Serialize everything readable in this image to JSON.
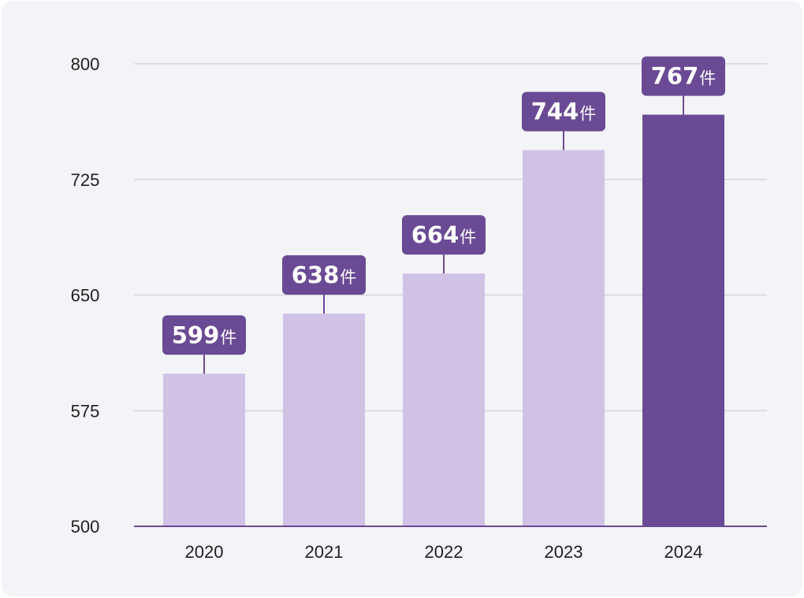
{
  "chart_data": {
    "type": "bar",
    "title": "",
    "xlabel": "",
    "ylabel": "",
    "categories": [
      "2020",
      "2021",
      "2022",
      "2023",
      "2024"
    ],
    "values": [
      599,
      638,
      664,
      744,
      767
    ],
    "value_suffix": "件",
    "ylim": [
      500,
      800
    ],
    "yticks": [
      "500",
      "575",
      "650",
      "725",
      "800"
    ],
    "grid": true,
    "legend": "none",
    "highlight_index": 4
  },
  "colors": {
    "background": "#f3f4f7",
    "bar": "#d0c2e5",
    "bar_highlight": "#6a4a94",
    "label_box": "#6a4a94",
    "axis": "#6a4a94",
    "grid": "#d6d6d9"
  }
}
